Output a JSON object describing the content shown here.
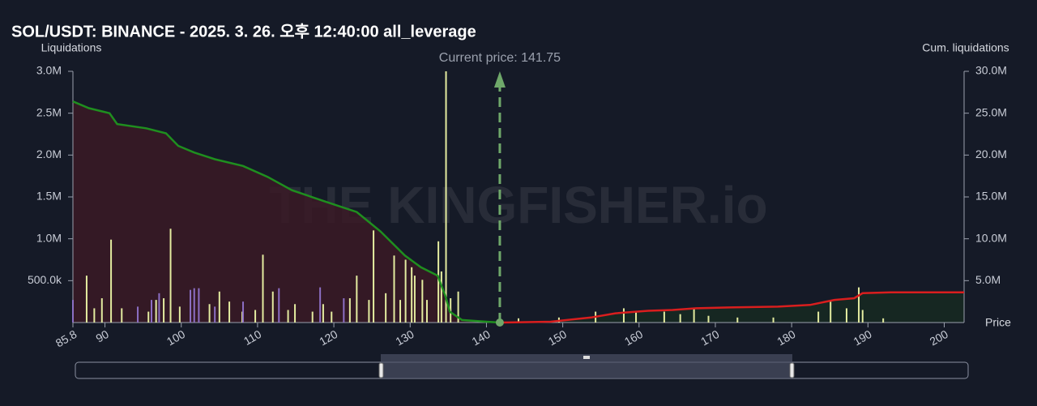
{
  "chart_data": {
    "type": "bar",
    "title": "SOL/USDT: BINANCE - 2025. 3. 26. 오후 12:40:00 all_leverage",
    "y_label": "Liquidations",
    "y2_label": "Cum. liquidations",
    "x_label": "Price",
    "watermark": "THE KINGFISHER.io",
    "current_price": {
      "value": 141.75,
      "label": "Current price: 141.75"
    },
    "current_price_color": "#6fa86a",
    "xlim": [
      85.8,
      202.6
    ],
    "xticks": [
      85.8,
      90,
      100,
      110,
      120,
      130,
      140,
      150,
      160,
      170,
      180,
      190,
      200
    ],
    "ylim": [
      0,
      3000000
    ],
    "yticks": [
      {
        "value": 500000,
        "label": "500.0k"
      },
      {
        "value": 1000000,
        "label": "1.0M"
      },
      {
        "value": 1500000,
        "label": "1.5M"
      },
      {
        "value": 2000000,
        "label": "2.0M"
      },
      {
        "value": 2500000,
        "label": "2.5M"
      },
      {
        "value": 3000000,
        "label": "3.0M"
      }
    ],
    "y2lim": [
      0,
      30000000
    ],
    "y2ticks": [
      {
        "value": 5000000,
        "label": "5.0M"
      },
      {
        "value": 10000000,
        "label": "10.0M"
      },
      {
        "value": 15000000,
        "label": "15.0M"
      },
      {
        "value": 20000000,
        "label": "20.0M"
      },
      {
        "value": 25000000,
        "label": "25.0M"
      },
      {
        "value": 30000000,
        "label": "30.0M"
      }
    ],
    "series": [
      {
        "type": "bar",
        "color": "#e4eca0",
        "x": [
          87.6,
          88.6,
          89.6,
          90.8,
          92.2,
          95.7,
          96.7,
          97.7,
          98.6,
          99.8,
          103.7,
          105.0,
          106.3,
          108.0,
          109.7,
          110.7,
          112.0,
          114.0,
          114.9,
          117.2,
          118.6,
          119.7,
          122.1,
          123.0,
          124.6,
          125.2,
          126.8,
          127.9,
          128.7,
          129.4,
          130.2,
          130.6,
          131.6,
          132.2,
          133.7,
          134.1,
          134.7,
          135.3,
          136.3,
          144.2,
          149.5,
          154.3,
          158.0,
          159.6,
          163.3,
          165.4,
          167.2,
          169.1,
          172.9,
          177.6,
          183.5,
          185.1,
          187.2,
          188.8,
          189.3,
          192.0
        ],
        "values": [
          560000,
          170000,
          290000,
          990000,
          170000,
          130000,
          270000,
          290000,
          1120000,
          190000,
          220000,
          370000,
          250000,
          130000,
          150000,
          810000,
          370000,
          150000,
          220000,
          130000,
          220000,
          130000,
          290000,
          560000,
          270000,
          1100000,
          350000,
          800000,
          270000,
          750000,
          660000,
          560000,
          510000,
          270000,
          970000,
          610000,
          3000000,
          290000,
          370000,
          50000,
          60000,
          130000,
          170000,
          120000,
          130000,
          100000,
          170000,
          80000,
          60000,
          60000,
          130000,
          250000,
          170000,
          420000,
          150000,
          50000
        ]
      },
      {
        "type": "bar",
        "color": "#8c6fc4",
        "x": [
          85.8,
          94.3,
          96.1,
          97.1,
          101.2,
          101.7,
          102.3,
          104.4,
          108.1,
          112.8,
          118.2,
          121.3
        ],
        "values": [
          270000,
          190000,
          270000,
          350000,
          390000,
          410000,
          410000,
          190000,
          250000,
          410000,
          420000,
          290000
        ]
      },
      {
        "type": "line",
        "axis": "y2",
        "color": "#1f8f1f",
        "area_color": "#3a1a26",
        "x": [
          85.8,
          87.9,
          90.6,
          91.6,
          95.4,
          98.0,
          99.6,
          101.7,
          104.4,
          108.1,
          111.3,
          114.5,
          118.7,
          123.0,
          126.1,
          129.3,
          131.4,
          133.6,
          134.6,
          135.2,
          136.8,
          140.0,
          141.75
        ],
        "values": [
          26400000,
          25600000,
          25000000,
          23700000,
          23200000,
          22600000,
          21100000,
          20300000,
          19500000,
          18700000,
          17400000,
          15800000,
          14500000,
          13200000,
          10900000,
          8000000,
          6600000,
          5600000,
          3200000,
          1300000,
          300000,
          100000,
          0
        ]
      },
      {
        "type": "line",
        "axis": "y2",
        "color": "#d91e1e",
        "area_color": "#162a22",
        "x": [
          141.75,
          148.4,
          153.7,
          156.9,
          161.2,
          164.4,
          167.5,
          171.8,
          178.2,
          182.4,
          185.6,
          188.2,
          189.3,
          193.0,
          202.6
        ],
        "values": [
          0,
          100000,
          600000,
          1100000,
          1400000,
          1500000,
          1700000,
          1800000,
          1900000,
          2100000,
          2700000,
          2900000,
          3500000,
          3600000,
          3600000
        ]
      }
    ]
  }
}
